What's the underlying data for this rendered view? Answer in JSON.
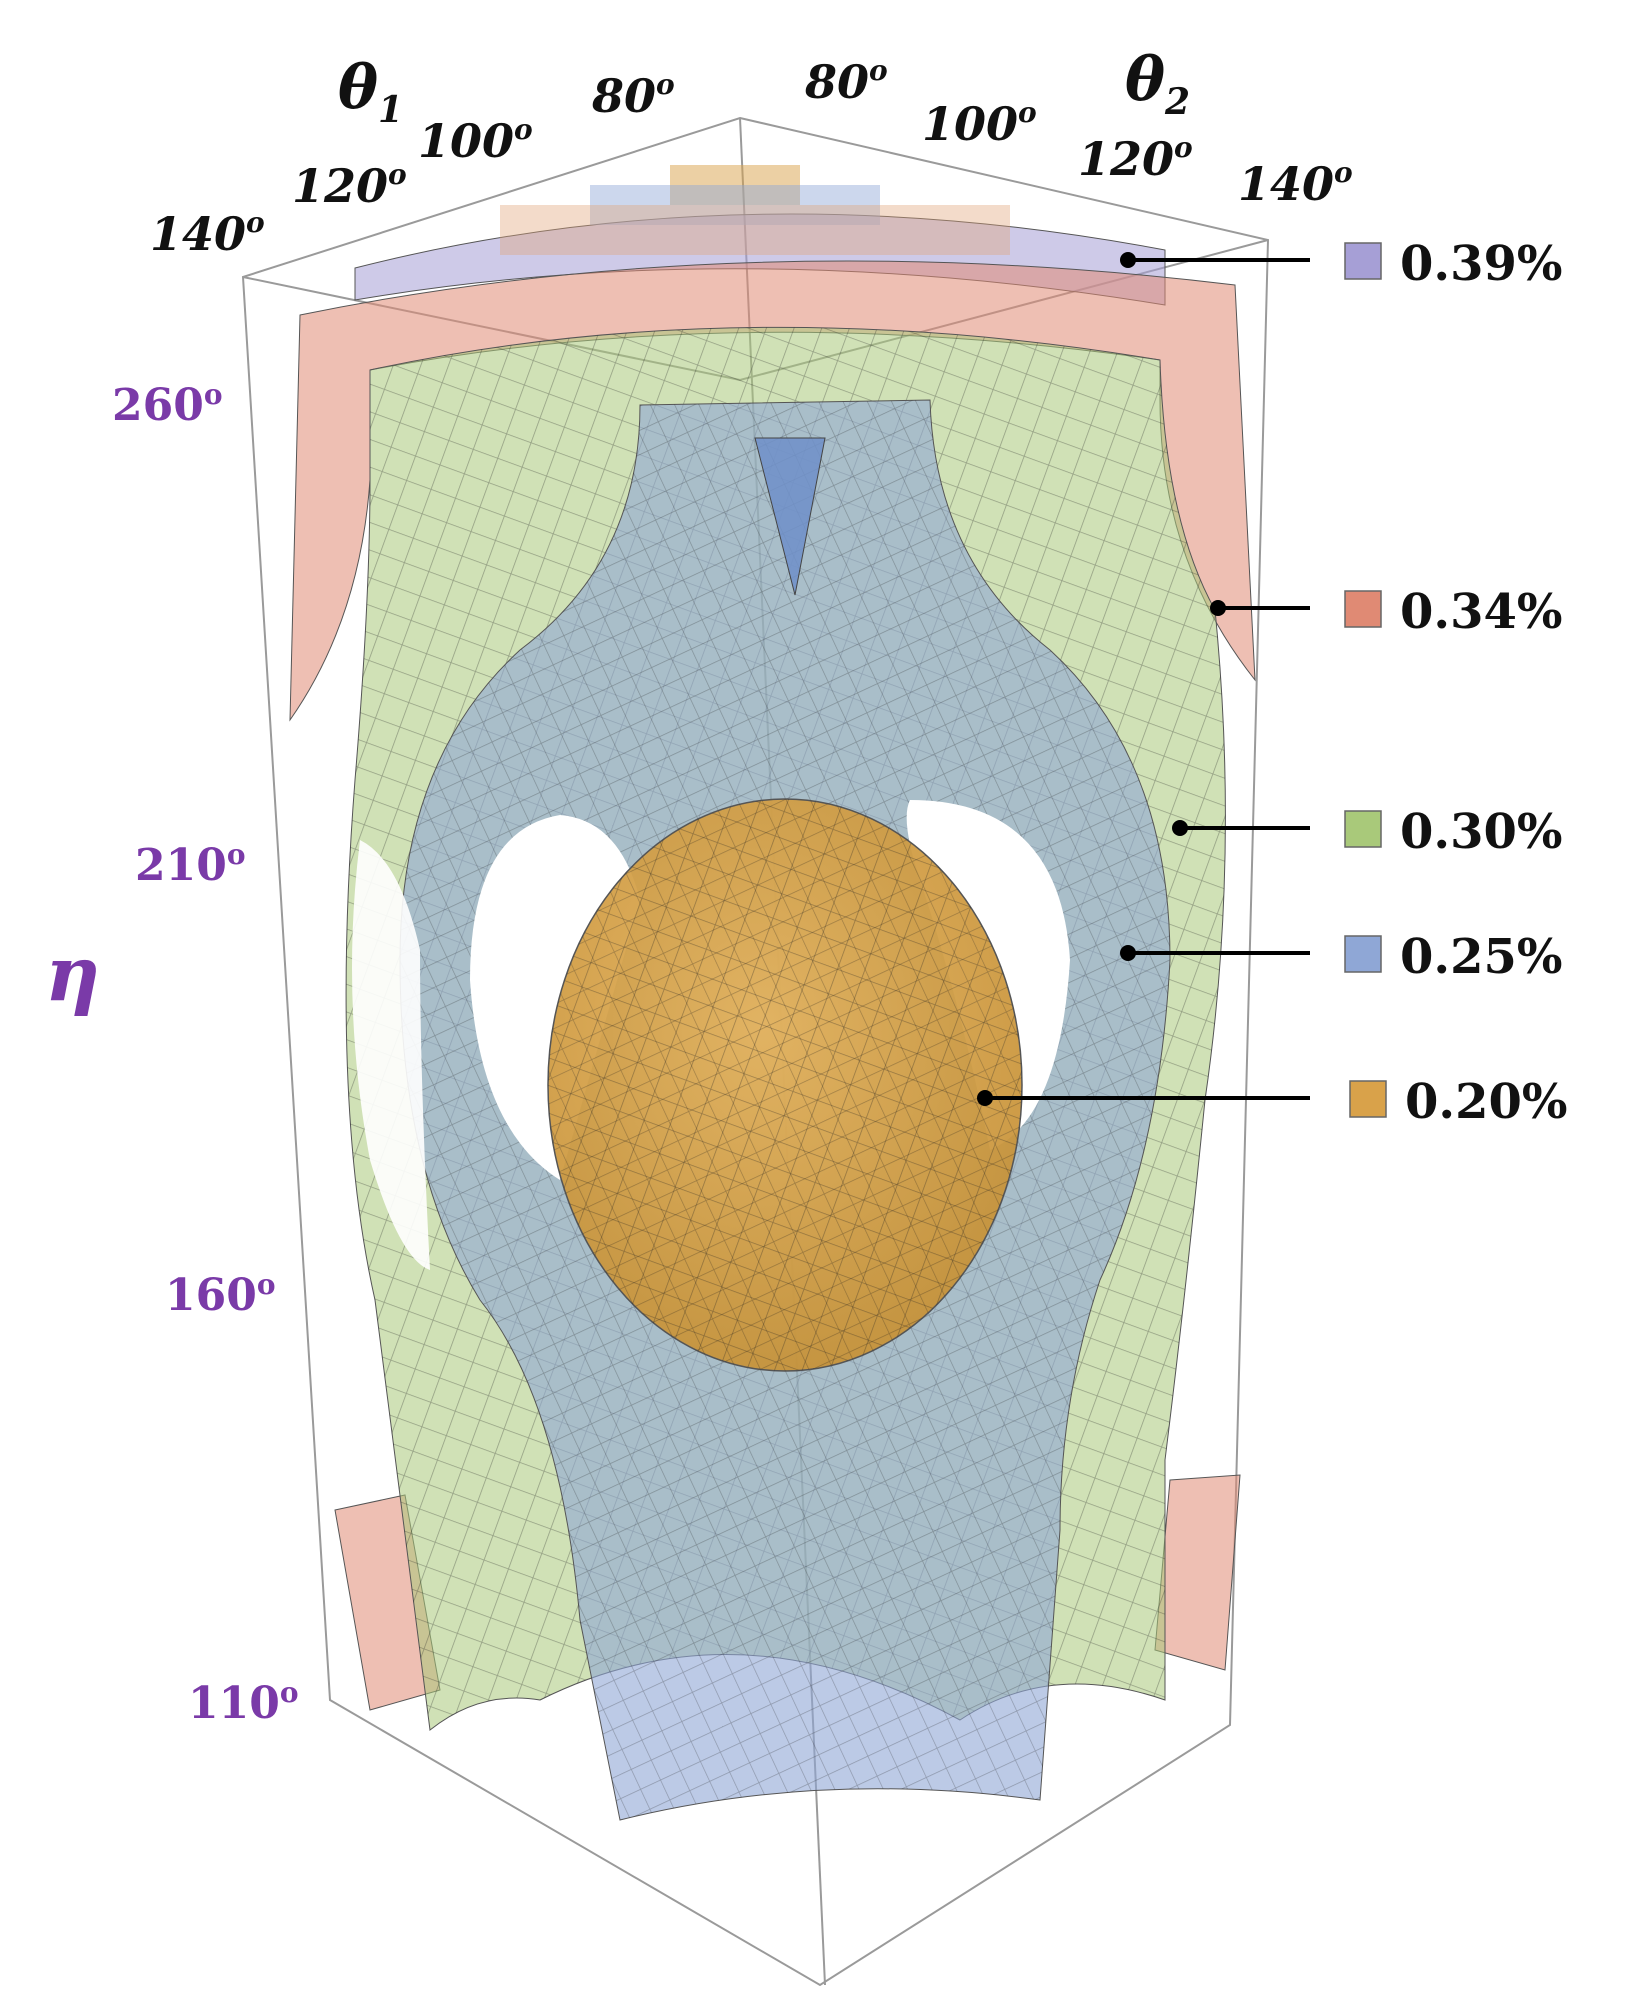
{
  "chart_data": {
    "type": "3d-isosurface",
    "axes": {
      "theta1": {
        "label": "θ",
        "subscript": "1",
        "ticks": [
          "140",
          "120",
          "100",
          "80"
        ],
        "tick_suffix": "o"
      },
      "theta2": {
        "label": "θ",
        "subscript": "2",
        "ticks": [
          "80",
          "100",
          "120",
          "140"
        ],
        "tick_suffix": "o"
      },
      "eta": {
        "label": "η",
        "ticks": [
          "260",
          "210",
          "160",
          "110"
        ],
        "tick_suffix": "o"
      }
    },
    "series": [
      {
        "name": "0.39%",
        "color": "#a69fd6"
      },
      {
        "name": "0.34%",
        "color": "#e08a74"
      },
      {
        "name": "0.30%",
        "color": "#a9c97a"
      },
      {
        "name": "0.25%",
        "color": "#8fa7d6"
      },
      {
        "name": "0.20%",
        "color": "#d9a24a"
      }
    ],
    "grid": false,
    "legend_placement": "right"
  }
}
